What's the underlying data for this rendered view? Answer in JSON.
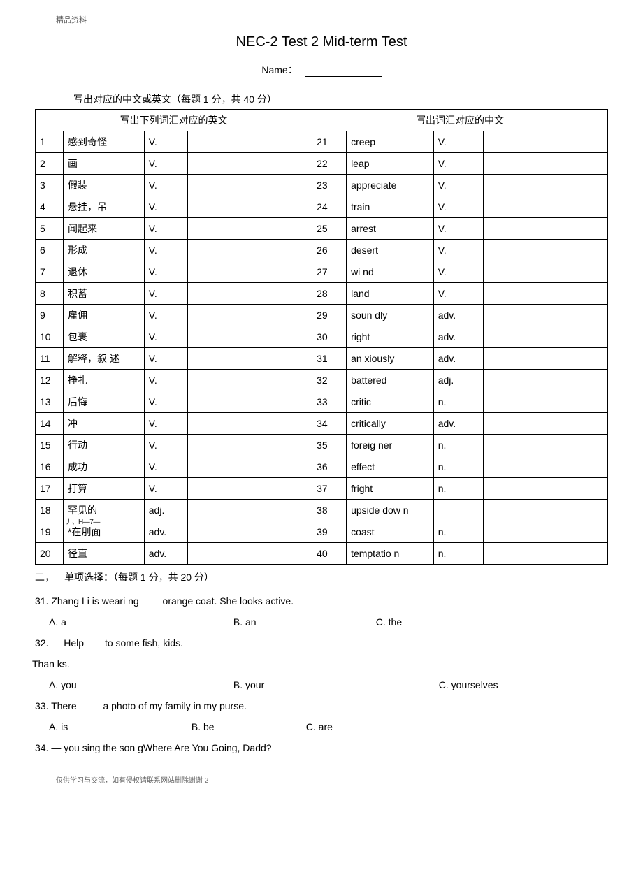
{
  "header_label": "精品资料",
  "title": "NEC-2 Test 2 Mid-term Test",
  "name_label": "Name：",
  "section1_intro": "写出对应的中文或英文（每题 1 分，共 40 分）",
  "table": {
    "left_header": "写出下列词汇对应的英文",
    "right_header": "写出词汇对应的中文",
    "rows": [
      {
        "ln": "1",
        "lw": "感到奇怪",
        "lp": "V.",
        "rn": "21",
        "rw": "creep",
        "rp": "V."
      },
      {
        "ln": "2",
        "lw": "画",
        "lp": "V.",
        "rn": "22",
        "rw": "leap",
        "rp": "V."
      },
      {
        "ln": "3",
        "lw": "假装",
        "lp": "V.",
        "rn": "23",
        "rw": "appreciate",
        "rp": "V."
      },
      {
        "ln": "4",
        "lw": "悬挂，吊",
        "lp": "V.",
        "rn": "24",
        "rw": "train",
        "rp": "V."
      },
      {
        "ln": "5",
        "lw": "闻起来",
        "lp": "V.",
        "rn": "25",
        "rw": "arrest",
        "rp": "V."
      },
      {
        "ln": "6",
        "lw": "形成",
        "lp": "V.",
        "rn": "26",
        "rw": "desert",
        "rp": "V."
      },
      {
        "ln": "7",
        "lw": "退休",
        "lp": "V.",
        "rn": "27",
        "rw": "wi nd",
        "rp": "V."
      },
      {
        "ln": "8",
        "lw": "积蓄",
        "lp": "V.",
        "rn": "28",
        "rw": "land",
        "rp": "V."
      },
      {
        "ln": "9",
        "lw": "雇佣",
        "lp": "V.",
        "rn": "29",
        "rw": "soun dly",
        "rp": "adv."
      },
      {
        "ln": "10",
        "lw": "包裹",
        "lp": "V.",
        "rn": "30",
        "rw": "right",
        "rp": "adv."
      },
      {
        "ln": "11",
        "lw": "解释，叙 述",
        "lp": "V.",
        "rn": "31",
        "rw": "an xiously",
        "rp": "adv."
      },
      {
        "ln": "12",
        "lw": "挣扎",
        "lp": "V.",
        "rn": "32",
        "rw": "battered",
        "rp": "adj."
      },
      {
        "ln": "13",
        "lw": "后悔",
        "lp": "V.",
        "rn": "33",
        "rw": "critic",
        "rp": "n."
      },
      {
        "ln": "14",
        "lw": "冲",
        "lp": "V.",
        "rn": "34",
        "rw": "critically",
        "rp": "adv."
      },
      {
        "ln": "15",
        "lw": "行动",
        "lp": "V.",
        "rn": "35",
        "rw": "foreig ner",
        "rp": "n."
      },
      {
        "ln": "16",
        "lw": "成功",
        "lp": "V.",
        "rn": "36",
        "rw": "effect",
        "rp": "n."
      },
      {
        "ln": "17",
        "lw": "打算",
        "lp": "V.",
        "rn": "37",
        "rw": "fright",
        "rp": "n."
      },
      {
        "ln": "18",
        "lw": "罕见的",
        "lp": "adj.",
        "rn": "38",
        "rw": "upside dow n",
        "rp": ""
      },
      {
        "ln": "19",
        "lw": "*在刖面",
        "lp": "adv.",
        "rn": "39",
        "rw": "coast",
        "rp": "n."
      },
      {
        "ln": "20",
        "lw": "径直",
        "lp": "adv.",
        "rn": "40",
        "rw": "temptatio n",
        "rp": "n."
      }
    ],
    "row19_annot": "丿、H—7—"
  },
  "section2_header": "二， 单项选择：（每题 1 分，共 20 分）",
  "questions": {
    "q31": {
      "stem_pre": "31. Zhang Li is weari ng ",
      "stem_post": "orange coat. She looks active.",
      "optA": "A. a",
      "optB": "B. an",
      "optC": "C. the"
    },
    "q32": {
      "stem_pre": "32. — Help ",
      "stem_post": "to some fish, kids.",
      "line2": "—Than ks.",
      "optA": "A. you",
      "optB": "B. your",
      "optC": "C. yourselves"
    },
    "q33": {
      "stem_pre": "33. There ",
      "stem_post": " a photo of my family in my purse.",
      "optA": "A. is",
      "optB": "B. be",
      "optC": "C. are"
    },
    "q34": {
      "stem": "34. — you sing the son gWhere Are You Going, Dadd?"
    }
  },
  "footer": "仅供学习与交流，如有侵权请联系网站删除谢谢 2"
}
